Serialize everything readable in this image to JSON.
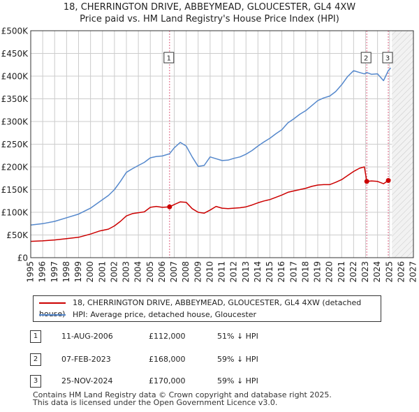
{
  "title": {
    "line1": "18, CHERRINGTON DRIVE, ABBEYMEAD, GLOUCESTER, GL4 4XW",
    "line2": "Price paid vs. HM Land Registry's House Price Index (HPI)"
  },
  "colors": {
    "property": "#cc0000",
    "hpi": "#5588cc",
    "grid": "#cccccc",
    "vline": "#e06080"
  },
  "legend": {
    "property_label": "18, CHERRINGTON DRIVE, ABBEYMEAD, GLOUCESTER, GL4 4XW (detached house)",
    "hpi_label": "HPI: Average price, detached house, Gloucester"
  },
  "sales": [
    {
      "num": "1",
      "date": "11-AUG-2006",
      "price": "£112,000",
      "hpi_diff": "51% ↓ HPI"
    },
    {
      "num": "2",
      "date": "07-FEB-2023",
      "price": "£168,000",
      "hpi_diff": "59% ↓ HPI"
    },
    {
      "num": "3",
      "date": "25-NOV-2024",
      "price": "£170,000",
      "hpi_diff": "59% ↓ HPI"
    }
  ],
  "footer": {
    "line1": "Contains HM Land Registry data © Crown copyright and database right 2025.",
    "line2": "This data is licensed under the Open Government Licence v3.0."
  },
  "chart_data": {
    "type": "line",
    "xlim": [
      1995,
      2027
    ],
    "ylim": [
      0,
      500000
    ],
    "y_ticks": [
      0,
      50000,
      100000,
      150000,
      200000,
      250000,
      300000,
      350000,
      400000,
      450000,
      500000
    ],
    "y_tick_labels": [
      "£0",
      "£50K",
      "£100K",
      "£150K",
      "£200K",
      "£250K",
      "£300K",
      "£350K",
      "£400K",
      "£450K",
      "£500K"
    ],
    "x_ticks": [
      "1995",
      "1996",
      "1997",
      "1998",
      "1999",
      "2000",
      "2001",
      "2002",
      "2003",
      "2004",
      "2005",
      "2006",
      "2007",
      "2008",
      "2009",
      "2010",
      "2011",
      "2012",
      "2013",
      "2014",
      "2015",
      "2016",
      "2017",
      "2018",
      "2019",
      "2020",
      "2021",
      "2022",
      "2023",
      "2024",
      "2025",
      "2026",
      "2027"
    ],
    "future_from": 2025.2,
    "series": [
      {
        "name": "18, CHERRINGTON DRIVE, ABBEYMEAD, GLOUCESTER, GL4 4XW (detached house)",
        "color": "#cc0000",
        "x": [
          1995.0,
          1996.0,
          1997.0,
          1998.0,
          1999.0,
          2000.0,
          2000.8,
          2001.5,
          2002.0,
          2002.5,
          2003.0,
          2003.5,
          2004.0,
          2004.5,
          2005.0,
          2005.5,
          2006.0,
          2006.61,
          2007.0,
          2007.5,
          2008.0,
          2008.5,
          2009.0,
          2009.5,
          2010.0,
          2010.5,
          2011.0,
          2011.5,
          2012.0,
          2012.5,
          2013.0,
          2013.5,
          2014.0,
          2014.5,
          2015.0,
          2015.5,
          2016.0,
          2016.5,
          2017.0,
          2017.5,
          2018.0,
          2018.5,
          2019.0,
          2019.5,
          2020.0,
          2020.5,
          2021.0,
          2021.5,
          2022.0,
          2022.5,
          2022.9,
          2023.1,
          2023.5,
          2024.0,
          2024.5,
          2024.9,
          2025.1
        ],
        "y": [
          36000,
          37000,
          39000,
          42000,
          45000,
          52000,
          59000,
          63000,
          70000,
          80000,
          92000,
          97000,
          99000,
          101000,
          111000,
          113000,
          111000,
          112000,
          117000,
          123000,
          122000,
          108000,
          100000,
          98000,
          105000,
          113000,
          109000,
          108000,
          109000,
          110000,
          112000,
          116000,
          121000,
          125000,
          128000,
          133000,
          138000,
          144000,
          147000,
          150000,
          153000,
          157000,
          160000,
          161000,
          161000,
          166000,
          172000,
          181000,
          190000,
          197000,
          200000,
          168000,
          169000,
          168000,
          163000,
          170000,
          172000
        ]
      },
      {
        "name": "HPI: Average price, detached house, Gloucester",
        "color": "#5588cc",
        "x": [
          1995.0,
          1996.0,
          1997.0,
          1998.0,
          1999.0,
          2000.0,
          2000.8,
          2001.5,
          2002.0,
          2002.5,
          2003.0,
          2003.5,
          2004.0,
          2004.5,
          2005.0,
          2005.5,
          2006.0,
          2006.61,
          2007.0,
          2007.5,
          2008.0,
          2008.5,
          2009.0,
          2009.5,
          2010.0,
          2010.5,
          2011.0,
          2011.5,
          2012.0,
          2012.5,
          2013.0,
          2013.5,
          2014.0,
          2014.5,
          2015.0,
          2015.5,
          2016.0,
          2016.5,
          2017.0,
          2017.5,
          2018.0,
          2018.5,
          2019.0,
          2019.5,
          2020.0,
          2020.5,
          2021.0,
          2021.5,
          2022.0,
          2022.5,
          2022.9,
          2023.1,
          2023.5,
          2024.0,
          2024.5,
          2024.9,
          2025.1
        ],
        "y": [
          72000,
          75000,
          80000,
          88000,
          96000,
          109000,
          124000,
          137000,
          150000,
          168000,
          188000,
          196000,
          203000,
          210000,
          220000,
          223000,
          224000,
          229000,
          242000,
          254000,
          246000,
          222000,
          201000,
          203000,
          222000,
          218000,
          214000,
          215000,
          219000,
          222000,
          228000,
          236000,
          246000,
          255000,
          263000,
          273000,
          282000,
          297000,
          306000,
          316000,
          324000,
          335000,
          346000,
          352000,
          356000,
          366000,
          381000,
          399000,
          412000,
          408000,
          405000,
          408000,
          404000,
          405000,
          390000,
          412000,
          418000
        ]
      }
    ],
    "sale_markers": [
      {
        "label": "1",
        "x": 2006.61,
        "y": 112000
      },
      {
        "label": "2",
        "x": 2023.1,
        "y": 168000
      },
      {
        "label": "3",
        "x": 2024.9,
        "y": 170000
      }
    ]
  }
}
